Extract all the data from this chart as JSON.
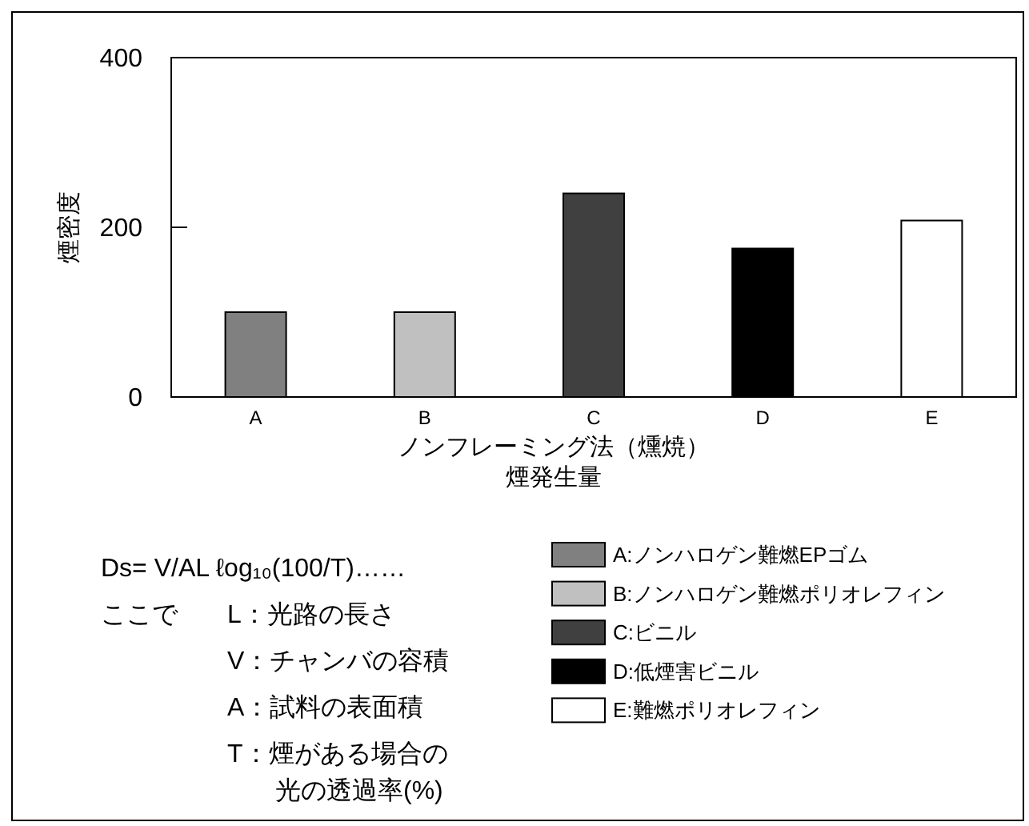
{
  "chart_data": {
    "type": "bar",
    "ylabel": "煙密度",
    "xlabel": "ノンフレーミング法（燻焼）煙発生量",
    "categories": [
      "A",
      "B",
      "C",
      "D",
      "E"
    ],
    "series": [
      {
        "name": "A:ノンハロゲン難燃EPゴム",
        "color": "#808080",
        "values": [
          100,
          null,
          null,
          null,
          null
        ]
      },
      {
        "name": "B:ノンハロゲン難燃ポリオレフィン",
        "color": "#c0c0c0",
        "values": [
          null,
          100,
          null,
          null,
          null
        ]
      },
      {
        "name": "C:ビニル",
        "color": "#404040",
        "values": [
          null,
          null,
          240,
          null,
          null
        ]
      },
      {
        "name": "D:低煙害ビニル",
        "color": "#000000",
        "values": [
          null,
          null,
          null,
          175,
          null
        ]
      },
      {
        "name": "E:難燃ポリオレフィン",
        "color": "#ffffff",
        "values": [
          null,
          null,
          null,
          null,
          208
        ]
      }
    ],
    "ylim": [
      0,
      400
    ],
    "yticks": [
      0,
      200,
      400
    ],
    "grid": false,
    "legend": "bottom right",
    "annotations": [
      "Ds= V/AL ℓog₁₀(100/T)……",
      "ここで",
      "L：光路の長さ",
      "V：チャンバの容積",
      "A：試料の表面積",
      "T：煙がある場合の",
      "光の透過率(%)"
    ]
  }
}
